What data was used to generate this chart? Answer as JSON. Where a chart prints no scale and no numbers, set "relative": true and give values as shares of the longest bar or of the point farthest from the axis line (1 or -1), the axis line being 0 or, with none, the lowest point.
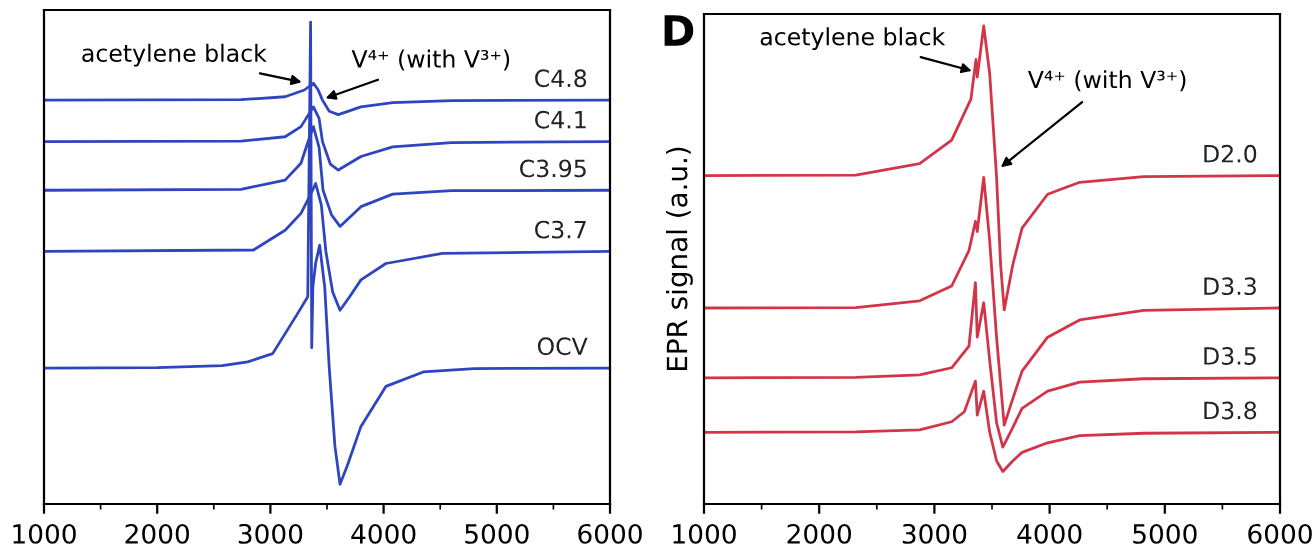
{
  "chart_data": [
    {
      "type": "line",
      "relative": true,
      "xlim": [
        1000,
        6000
      ],
      "xticks": [
        1000,
        2000,
        3000,
        4000,
        5000,
        6000
      ],
      "tick_labels": "x",
      "grid": false,
      "annotations": [
        {
          "text": "acetylene black",
          "x": 3325,
          "y": 0.873
        },
        {
          "text": "V⁴⁺ (with V³⁺)",
          "x": 3440,
          "y": 0.838
        }
      ],
      "series": [
        {
          "name": "C4.8",
          "color": "#2f45c0",
          "x": [
            1000,
            2740,
            3130,
            3300,
            3380,
            3420,
            3460,
            3520,
            3600,
            3800,
            4080,
            4600,
            6000
          ],
          "values": [
            0.838,
            0.839,
            0.845,
            0.859,
            0.873,
            0.86,
            0.838,
            0.815,
            0.808,
            0.824,
            0.833,
            0.837,
            0.838
          ]
        },
        {
          "name": "C4.1",
          "color": "#2f45c0",
          "x": [
            1000,
            2740,
            3130,
            3270,
            3380,
            3430,
            3460,
            3530,
            3600,
            3800,
            4080,
            4600,
            6000
          ],
          "values": [
            0.752,
            0.753,
            0.762,
            0.783,
            0.824,
            0.8,
            0.752,
            0.705,
            0.693,
            0.721,
            0.741,
            0.75,
            0.752
          ]
        },
        {
          "name": "C3.95",
          "color": "#2f45c0",
          "x": [
            1000,
            2740,
            3130,
            3270,
            3330,
            3380,
            3430,
            3465,
            3540,
            3615,
            3800,
            4080,
            4600,
            6000
          ],
          "values": [
            0.651,
            0.653,
            0.672,
            0.707,
            0.75,
            0.783,
            0.74,
            0.651,
            0.6,
            0.576,
            0.617,
            0.643,
            0.65,
            0.651
          ]
        },
        {
          "name": "C3.7",
          "color": "#2f45c0",
          "x": [
            1000,
            2850,
            3130,
            3270,
            3350,
            3400,
            3450,
            3490,
            3550,
            3615,
            3700,
            3800,
            4020,
            4520,
            6000
          ],
          "values": [
            0.524,
            0.527,
            0.568,
            0.603,
            0.64,
            0.665,
            0.62,
            0.524,
            0.44,
            0.402,
            0.43,
            0.465,
            0.499,
            0.52,
            0.524
          ]
        },
        {
          "name": "OCV",
          "color": "#2f45c0",
          "x": [
            1000,
            2000,
            2575,
            2800,
            3020,
            3240,
            3330,
            3355,
            3365,
            3375,
            3400,
            3435,
            3480,
            3520,
            3570,
            3615,
            3680,
            3800,
            4020,
            4350,
            4800,
            6000
          ],
          "values": [
            0.282,
            0.283,
            0.287,
            0.295,
            0.312,
            0.395,
            0.43,
            1.0,
            0.324,
            0.45,
            0.5,
            0.537,
            0.45,
            0.282,
            0.12,
            0.041,
            0.08,
            0.161,
            0.244,
            0.274,
            0.281,
            0.282
          ]
        }
      ]
    },
    {
      "type": "line",
      "relative": true,
      "xlim": [
        1000,
        6000
      ],
      "xticks": [
        1000,
        2000,
        3000,
        4000,
        5000,
        6000
      ],
      "tick_labels": "x",
      "grid": false,
      "ylabel": "EPR signal (a.u.)",
      "annotations": [
        "D",
        {
          "text": "acetylene black",
          "x": 3372,
          "y": 0.903
        },
        {
          "text": "V⁴⁺ (with V³⁺)",
          "x": 3539,
          "y": 0.697
        }
      ],
      "series": [
        {
          "name": "D2.0",
          "color": "#d23548",
          "x": [
            1000,
            2317,
            2872,
            3150,
            3317,
            3361,
            3372,
            3428,
            3480,
            3539,
            3575,
            3606,
            3680,
            3761,
            3983,
            4261,
            4817,
            6000
          ],
          "values": [
            0.687,
            0.688,
            0.712,
            0.761,
            0.847,
            0.93,
            0.893,
            1.0,
            0.9,
            0.687,
            0.5,
            0.406,
            0.5,
            0.577,
            0.648,
            0.673,
            0.685,
            0.687
          ]
        },
        {
          "name": "D3.3",
          "color": "#d23548",
          "x": [
            1000,
            2317,
            2872,
            3150,
            3300,
            3356,
            3372,
            3428,
            3480,
            3539,
            3606,
            3680,
            3761,
            3983,
            4261,
            4817,
            6000
          ],
          "values": [
            0.41,
            0.411,
            0.425,
            0.456,
            0.53,
            0.591,
            0.57,
            0.683,
            0.55,
            0.35,
            0.165,
            0.22,
            0.278,
            0.349,
            0.385,
            0.405,
            0.41
          ]
        },
        {
          "name": "D3.5",
          "color": "#d23548",
          "x": [
            1000,
            2317,
            2872,
            3150,
            3300,
            3356,
            3372,
            3428,
            3480,
            3540,
            3594,
            3680,
            3761,
            3983,
            4261,
            4817,
            6000
          ],
          "values": [
            0.264,
            0.265,
            0.27,
            0.285,
            0.33,
            0.463,
            0.349,
            0.421,
            0.3,
            0.17,
            0.119,
            0.16,
            0.2,
            0.236,
            0.255,
            0.262,
            0.264
          ]
        },
        {
          "name": "D3.8",
          "color": "#d23548",
          "x": [
            1000,
            2317,
            2872,
            3150,
            3260,
            3356,
            3372,
            3428,
            3480,
            3540,
            3594,
            3680,
            3761,
            3983,
            4261,
            4817,
            6000
          ],
          "values": [
            0.15,
            0.151,
            0.155,
            0.172,
            0.193,
            0.257,
            0.186,
            0.236,
            0.15,
            0.09,
            0.068,
            0.09,
            0.108,
            0.128,
            0.143,
            0.148,
            0.15
          ]
        }
      ]
    }
  ]
}
